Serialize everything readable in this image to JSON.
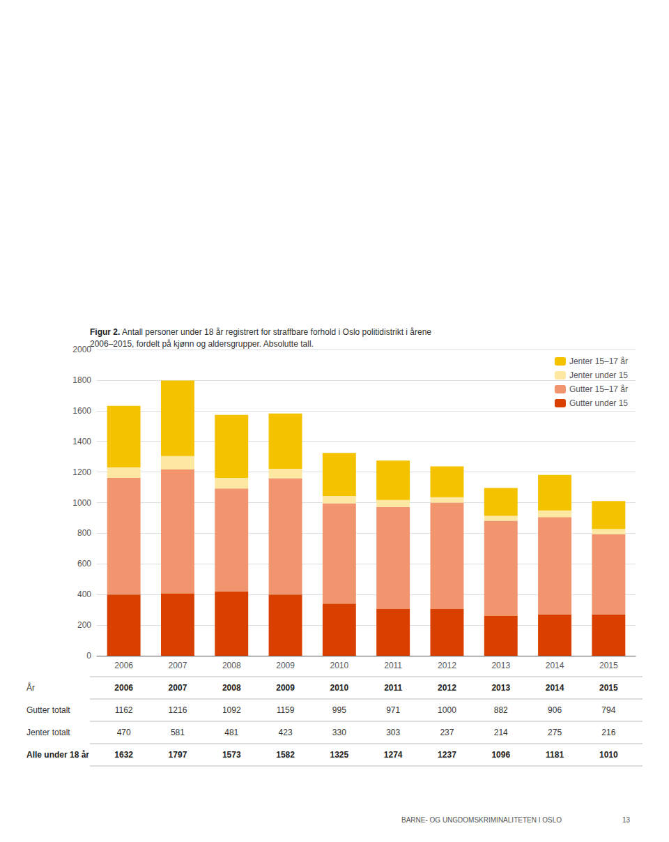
{
  "chart_data": {
    "type": "bar",
    "stacked": true,
    "title": "Figur 2.",
    "subtitle": " Antall personer under 18 år registrert for straffbare forhold i Oslo politidistrikt i årene\n2006–2015, fordelt på kjønn og aldersgrupper. Absolutte tall.",
    "categories": [
      "2006",
      "2007",
      "2008",
      "2009",
      "2010",
      "2011",
      "2012",
      "2013",
      "2014",
      "2015"
    ],
    "series": [
      {
        "name": "Gutter under 15",
        "color": "#d94000",
        "values": [
          400,
          405,
          420,
          400,
          340,
          305,
          305,
          260,
          270,
          270
        ]
      },
      {
        "name": "Gutter 15–17 år",
        "color": "#f0956e",
        "values": [
          762,
          811,
          672,
          759,
          655,
          666,
          695,
          622,
          636,
          524
        ]
      },
      {
        "name": "Jenter under 15",
        "color": "#fce8a0",
        "values": [
          68,
          88,
          70,
          62,
          48,
          46,
          35,
          32,
          43,
          34
        ]
      },
      {
        "name": "Jenter 15–17 år",
        "color": "#f5c200",
        "values": [
          402,
          493,
          411,
          361,
          282,
          257,
          202,
          182,
          232,
          182
        ]
      }
    ],
    "ylim": [
      0,
      2000
    ],
    "yticks": [
      0,
      200,
      400,
      600,
      800,
      1000,
      1200,
      1400,
      1600,
      1800,
      2000
    ],
    "grid": true,
    "legend": "upper right",
    "table": [
      {
        "label": "År",
        "values": [
          "2006",
          "2007",
          "2008",
          "2009",
          "2010",
          "2011",
          "2012",
          "2013",
          "2014",
          "2015"
        ]
      },
      {
        "label": "Gutter totalt",
        "values": [
          1162,
          1216,
          1092,
          1159,
          995,
          971,
          1000,
          882,
          906,
          794
        ]
      },
      {
        "label": "Jenter totalt",
        "values": [
          470,
          581,
          481,
          423,
          330,
          303,
          237,
          214,
          275,
          216
        ]
      },
      {
        "label": "Alle under 18 år",
        "values": [
          1632,
          1797,
          1573,
          1582,
          1325,
          1274,
          1237,
          1096,
          1181,
          1010
        ]
      }
    ],
    "annotations": [
      "BARNE- OG UNGDOMSKRIMINALITETEN I OSLO",
      "13"
    ]
  }
}
